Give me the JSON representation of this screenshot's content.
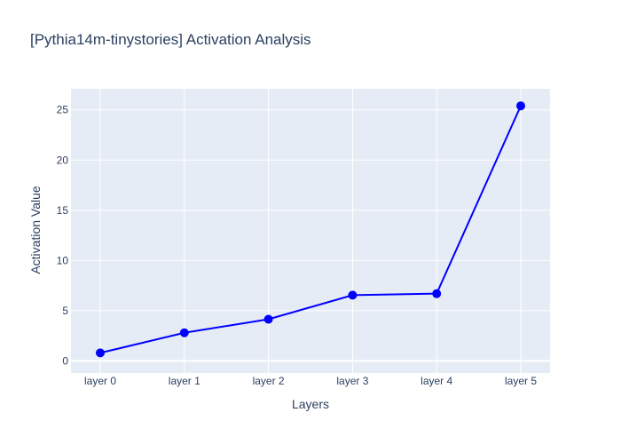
{
  "chart_data": {
    "type": "line",
    "title": "[Pythia14m-tinystories] Activation Analysis",
    "xlabel": "Layers",
    "ylabel": "Activation Value",
    "categories": [
      "layer 0",
      "layer 1",
      "layer 2",
      "layer 3",
      "layer 4",
      "layer 5"
    ],
    "series": [
      {
        "values": [
          0.8,
          2.8,
          4.15,
          6.55,
          6.7,
          25.4
        ]
      }
    ],
    "ylim": [
      -1.2,
      27.1
    ],
    "yticks": [
      0,
      5,
      10,
      15,
      20,
      25
    ],
    "grid": true,
    "line_color": "#0000ff",
    "marker_color": "#0000ff",
    "plot_background": "#e5ecf6",
    "grid_color": "#ffffff",
    "text_color": "#2a3f5f"
  }
}
